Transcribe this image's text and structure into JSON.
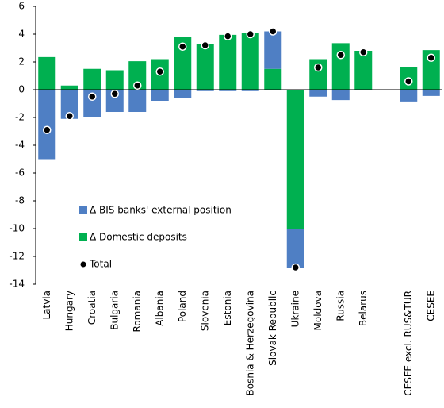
{
  "chart_data": {
    "type": "bar",
    "stacked": true,
    "categories": [
      "Latvia",
      "Hungary",
      "Croatia",
      "Bulgaria",
      "Romania",
      "Albania",
      "Poland",
      "Slovenia",
      "Estonia",
      "Bosnia & Herzegovina",
      "Slovak Republic",
      "Ukraine",
      "Moldova",
      "Russia",
      "Belarus",
      null,
      "CESEE excl. RUS&TUR",
      "CESEE"
    ],
    "series": [
      {
        "name": "Δ BIS banks' external position",
        "color": "#4f7fc4",
        "values": [
          -5.0,
          -2.1,
          -2.0,
          -1.6,
          -1.6,
          -0.8,
          -0.6,
          -0.1,
          -0.1,
          -0.1,
          2.7,
          -2.8,
          -0.5,
          -0.75,
          -0.05,
          null,
          -0.85,
          -0.45
        ]
      },
      {
        "name": "Δ Domestic deposits",
        "color": "#00b050",
        "values": [
          2.35,
          0.3,
          1.5,
          1.4,
          2.05,
          2.2,
          3.8,
          3.3,
          3.95,
          4.1,
          1.5,
          -10.0,
          2.2,
          3.35,
          2.8,
          null,
          1.6,
          2.85
        ]
      },
      {
        "name": "Total",
        "color": "#000000",
        "mark": "dot",
        "values": [
          -2.9,
          -1.9,
          -0.5,
          -0.3,
          0.3,
          1.3,
          3.1,
          3.2,
          3.85,
          4.0,
          4.2,
          -12.8,
          1.6,
          2.5,
          2.7,
          null,
          0.6,
          2.3
        ]
      }
    ],
    "ylim": [
      -14,
      6
    ],
    "yticks": [
      -14,
      -12,
      -10,
      -8,
      -6,
      -4,
      -2,
      0,
      2,
      4,
      6
    ],
    "grid": false
  }
}
